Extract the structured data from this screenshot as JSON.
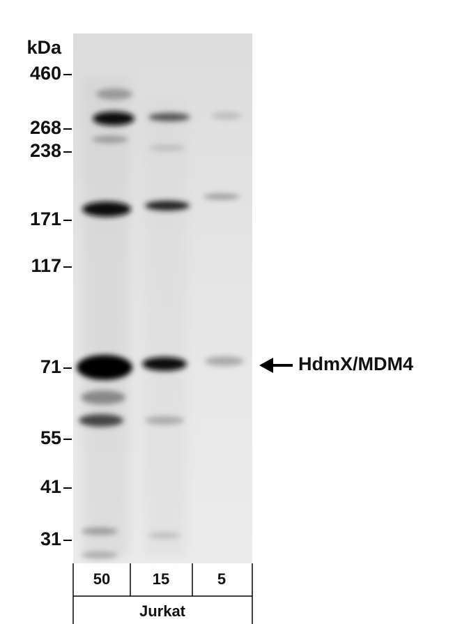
{
  "unit_label": "kDa",
  "markers": [
    "460",
    "268",
    "238",
    "171",
    "117",
    "71",
    "55",
    "41",
    "31"
  ],
  "lanes": [
    "50",
    "15",
    "5"
  ],
  "sample": "Jurkat",
  "target": "HdmX/MDM4"
}
